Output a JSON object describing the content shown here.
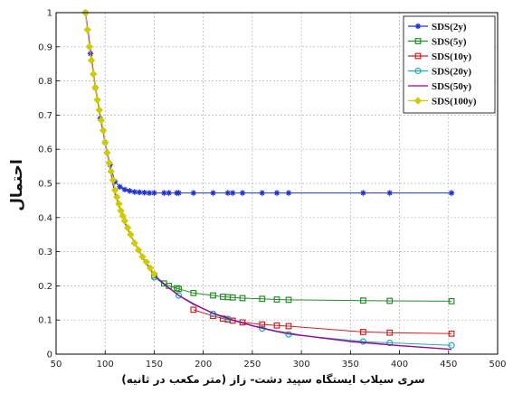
{
  "chart_data": {
    "type": "line",
    "title": "",
    "xlabel": "سری سیلاب ایستگاه سپید دشت- زاز (متر مکعب در ثانیه)",
    "ylabel": "احتمال",
    "xlim": [
      50,
      500
    ],
    "ylim": [
      0,
      1
    ],
    "x_ticks": [
      "50",
      "100",
      "150",
      "200",
      "250",
      "300",
      "350",
      "400",
      "450",
      "500"
    ],
    "y_ticks": [
      "0",
      "0.1",
      "0.2",
      "0.3",
      "0.4",
      "0.5",
      "0.6",
      "0.7",
      "0.8",
      "0.9",
      "1"
    ],
    "grid": true,
    "legend_position": "top-right",
    "series": [
      {
        "name": "SDS(2y)",
        "color": "#2233cc",
        "marker": "star",
        "x": [
          80,
          85,
          90,
          95,
          100,
          105,
          110,
          115,
          120,
          125,
          130,
          135,
          140,
          145,
          150,
          160,
          165,
          173,
          175,
          190,
          210,
          225,
          230,
          240,
          260,
          275,
          287,
          363,
          390,
          453
        ],
        "y": [
          1.0,
          0.88,
          0.78,
          0.69,
          0.62,
          0.555,
          0.505,
          0.49,
          0.482,
          0.478,
          0.475,
          0.474,
          0.473,
          0.472,
          0.472,
          0.472,
          0.472,
          0.472,
          0.472,
          0.472,
          0.472,
          0.472,
          0.472,
          0.472,
          0.472,
          0.472,
          0.472,
          0.472,
          0.472,
          0.472
        ]
      },
      {
        "name": "SDS(5y)",
        "color": "#2a8a2a",
        "marker": "square",
        "x": [
          150,
          160,
          165,
          173,
          175,
          190,
          210,
          220,
          225,
          230,
          240,
          260,
          275,
          287,
          363,
          390,
          453
        ],
        "y": [
          0.23,
          0.207,
          0.2,
          0.193,
          0.191,
          0.179,
          0.172,
          0.168,
          0.167,
          0.166,
          0.164,
          0.162,
          0.16,
          0.159,
          0.157,
          0.156,
          0.155
        ]
      },
      {
        "name": "SDS(10y)",
        "color": "#cc2222",
        "marker": "square",
        "x": [
          190,
          210,
          220,
          225,
          230,
          240,
          260,
          275,
          287,
          363,
          390,
          453
        ],
        "y": [
          0.13,
          0.112,
          0.104,
          0.101,
          0.098,
          0.093,
          0.087,
          0.084,
          0.082,
          0.065,
          0.063,
          0.06
        ]
      },
      {
        "name": "SDS(20y)",
        "color": "#22aaaa",
        "marker": "circle",
        "x": [
          150,
          175,
          210,
          225,
          260,
          287,
          363,
          390,
          453
        ],
        "y": [
          0.225,
          0.172,
          0.118,
          0.103,
          0.075,
          0.058,
          0.037,
          0.033,
          0.026
        ]
      },
      {
        "name": "SDS(50y)",
        "color": "#990099",
        "marker": "none",
        "x": [
          80,
          90,
          100,
          110,
          120,
          130,
          140,
          150,
          160,
          175,
          190,
          210,
          230,
          250,
          275,
          300,
          350,
          400,
          453
        ],
        "y": [
          1.0,
          0.78,
          0.62,
          0.47,
          0.385,
          0.325,
          0.275,
          0.232,
          0.205,
          0.172,
          0.146,
          0.12,
          0.1,
          0.083,
          0.067,
          0.055,
          0.037,
          0.025,
          0.014
        ]
      },
      {
        "name": "SDS(100y)",
        "color": "#cccc00",
        "marker": "diamond",
        "x": [
          80,
          82,
          84,
          86,
          88,
          90,
          92,
          94,
          96,
          98,
          100,
          102,
          104,
          106,
          108,
          110,
          112,
          114,
          116,
          118,
          120,
          123,
          126,
          130,
          134,
          138,
          142,
          146,
          150
        ],
        "y": [
          1.0,
          0.95,
          0.9,
          0.86,
          0.82,
          0.78,
          0.745,
          0.715,
          0.685,
          0.655,
          0.62,
          0.59,
          0.56,
          0.535,
          0.51,
          0.48,
          0.46,
          0.44,
          0.42,
          0.405,
          0.39,
          0.37,
          0.35,
          0.325,
          0.305,
          0.285,
          0.27,
          0.252,
          0.235
        ]
      }
    ]
  }
}
